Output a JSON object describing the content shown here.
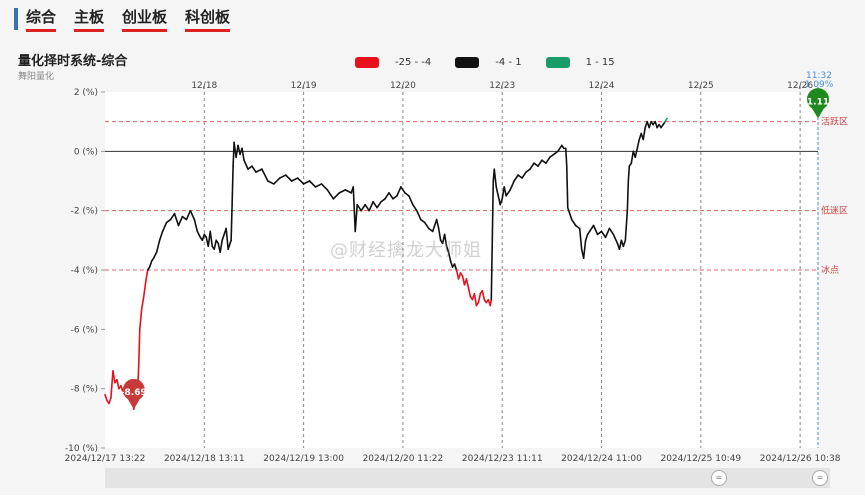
{
  "tabs": [
    {
      "label": "综合"
    },
    {
      "label": "主板"
    },
    {
      "label": "创业板"
    },
    {
      "label": "科创板"
    }
  ],
  "title": "量化择时系统-综合",
  "subtitle": "舞阳量化",
  "watermark": "@财经擒龙大师姐",
  "legend": [
    {
      "label": "-25 - -4",
      "color": "#e8101a"
    },
    {
      "label": "-4 - 1",
      "color": "#111111"
    },
    {
      "label": "1 - 15",
      "color": "#1a9c6a"
    }
  ],
  "colors": {
    "low": "#e8101a",
    "mid": "#111111",
    "high": "#1a9c6a",
    "marker_low": "#c83a3a",
    "marker_high": "#1e8a1e",
    "crosshair": "#4a90d9",
    "ref_line": "#e06666"
  },
  "chart_data": {
    "type": "line",
    "ylim": [
      -10,
      2
    ],
    "y_ticks": [
      "2 (%)",
      "0 (%)",
      "-2 (%)",
      "-4 (%)",
      "-6 (%)",
      "-8 (%)",
      "-10 (%)"
    ],
    "y_tick_values": [
      2,
      0,
      -2,
      -4,
      -6,
      -8,
      -10
    ],
    "day_labels": [
      "12/18",
      "12/19",
      "12/20",
      "12/23",
      "12/24",
      "12/25",
      "12/26"
    ],
    "day_positions": [
      1.0,
      2.0,
      3.0,
      4.0,
      5.0,
      6.0,
      7.0
    ],
    "x_tick_labels": [
      "2024/12/17 13:22",
      "2024/12/18 13:11",
      "2024/12/19 13:00",
      "2024/12/20 11:22",
      "2024/12/23 11:11",
      "2024/12/24 11:00",
      "2024/12/25 10:49",
      "2024/12/26 10:38"
    ],
    "x_tick_positions": [
      0.0,
      1.0,
      2.0,
      3.0,
      4.0,
      5.0,
      6.0,
      7.0
    ],
    "ref_lines": [
      {
        "value": 1,
        "label": "活跃区"
      },
      {
        "value": -2,
        "label": "低迷区"
      },
      {
        "value": -4,
        "label": "冰点"
      }
    ],
    "crosshair": {
      "time": "11:32",
      "value": "1.09%"
    },
    "markers": [
      {
        "label": "-8.69",
        "x": 0.29,
        "y": -8.69,
        "kind": "low"
      },
      {
        "label": "1.11",
        "x": 7.18,
        "y": 1.11,
        "kind": "high"
      }
    ],
    "x_end": 7.18,
    "series": [
      {
        "values": [
          [
            0.0,
            -8.2
          ],
          [
            0.02,
            -8.4
          ],
          [
            0.04,
            -8.5
          ],
          [
            0.06,
            -8.3
          ],
          [
            0.08,
            -7.4
          ],
          [
            0.1,
            -7.8
          ],
          [
            0.12,
            -7.7
          ],
          [
            0.14,
            -8.0
          ],
          [
            0.16,
            -7.9
          ],
          [
            0.18,
            -8.1
          ],
          [
            0.2,
            -8.2
          ],
          [
            0.22,
            -8.1
          ],
          [
            0.24,
            -8.3
          ],
          [
            0.26,
            -8.1
          ],
          [
            0.28,
            -8.5
          ],
          [
            0.29,
            -8.69
          ],
          [
            0.31,
            -8.4
          ],
          [
            0.33,
            -8.0
          ],
          [
            0.34,
            -7.2
          ],
          [
            0.35,
            -6.0
          ],
          [
            0.37,
            -5.3
          ],
          [
            0.39,
            -4.9
          ],
          [
            0.41,
            -4.4
          ],
          [
            0.43,
            -4.0
          ],
          [
            0.45,
            -3.9
          ],
          [
            0.47,
            -3.7
          ],
          [
            0.49,
            -3.6
          ],
          [
            0.52,
            -3.4
          ],
          [
            0.55,
            -3.0
          ],
          [
            0.58,
            -2.7
          ],
          [
            0.62,
            -2.4
          ],
          [
            0.66,
            -2.3
          ],
          [
            0.7,
            -2.1
          ],
          [
            0.74,
            -2.5
          ],
          [
            0.78,
            -2.2
          ],
          [
            0.82,
            -2.3
          ],
          [
            0.86,
            -2.0
          ],
          [
            0.9,
            -2.3
          ],
          [
            0.93,
            -2.7
          ],
          [
            0.96,
            -2.9
          ],
          [
            0.98,
            -3.0
          ],
          [
            1.0,
            -2.8
          ],
          [
            1.02,
            -2.9
          ],
          [
            1.04,
            -3.2
          ],
          [
            1.06,
            -2.7
          ],
          [
            1.08,
            -3.2
          ],
          [
            1.1,
            -3.3
          ],
          [
            1.12,
            -3.0
          ],
          [
            1.14,
            -3.1
          ],
          [
            1.16,
            -3.4
          ],
          [
            1.18,
            -3.0
          ],
          [
            1.2,
            -2.8
          ],
          [
            1.22,
            -2.6
          ],
          [
            1.24,
            -3.3
          ],
          [
            1.26,
            -3.1
          ],
          [
            1.27,
            -3.0
          ],
          [
            1.28,
            -1.8
          ],
          [
            1.29,
            -0.5
          ],
          [
            1.3,
            0.3
          ],
          [
            1.32,
            -0.2
          ],
          [
            1.34,
            0.2
          ],
          [
            1.36,
            -0.1
          ],
          [
            1.38,
            0.1
          ],
          [
            1.4,
            -0.3
          ],
          [
            1.44,
            -0.6
          ],
          [
            1.48,
            -0.5
          ],
          [
            1.52,
            -0.7
          ],
          [
            1.58,
            -0.6
          ],
          [
            1.64,
            -1.0
          ],
          [
            1.7,
            -1.1
          ],
          [
            1.76,
            -0.9
          ],
          [
            1.82,
            -0.8
          ],
          [
            1.88,
            -1.0
          ],
          [
            1.94,
            -0.9
          ],
          [
            2.0,
            -1.1
          ],
          [
            2.06,
            -1.0
          ],
          [
            2.12,
            -1.2
          ],
          [
            2.18,
            -1.1
          ],
          [
            2.24,
            -1.3
          ],
          [
            2.3,
            -1.6
          ],
          [
            2.36,
            -1.4
          ],
          [
            2.42,
            -1.3
          ],
          [
            2.48,
            -1.4
          ],
          [
            2.5,
            -1.2
          ],
          [
            2.52,
            -2.7
          ],
          [
            2.54,
            -1.8
          ],
          [
            2.58,
            -2.0
          ],
          [
            2.62,
            -1.8
          ],
          [
            2.66,
            -2.0
          ],
          [
            2.7,
            -1.7
          ],
          [
            2.74,
            -1.9
          ],
          [
            2.78,
            -1.7
          ],
          [
            2.82,
            -1.6
          ],
          [
            2.86,
            -1.4
          ],
          [
            2.9,
            -1.6
          ],
          [
            2.94,
            -1.5
          ],
          [
            2.98,
            -1.2
          ],
          [
            3.02,
            -1.4
          ],
          [
            3.06,
            -1.5
          ],
          [
            3.1,
            -1.8
          ],
          [
            3.14,
            -2.0
          ],
          [
            3.18,
            -2.3
          ],
          [
            3.22,
            -2.4
          ],
          [
            3.26,
            -2.6
          ],
          [
            3.3,
            -2.7
          ],
          [
            3.32,
            -2.5
          ],
          [
            3.34,
            -2.3
          ],
          [
            3.36,
            -2.6
          ],
          [
            3.38,
            -3.0
          ],
          [
            3.4,
            -3.1
          ],
          [
            3.42,
            -2.8
          ],
          [
            3.44,
            -3.2
          ],
          [
            3.46,
            -3.4
          ],
          [
            3.48,
            -3.7
          ],
          [
            3.5,
            -3.9
          ],
          [
            3.52,
            -3.8
          ],
          [
            3.54,
            -4.0
          ],
          [
            3.56,
            -4.3
          ],
          [
            3.58,
            -4.1
          ],
          [
            3.6,
            -4.2
          ],
          [
            3.62,
            -4.5
          ],
          [
            3.64,
            -4.3
          ],
          [
            3.66,
            -4.6
          ],
          [
            3.68,
            -4.9
          ],
          [
            3.7,
            -5.0
          ],
          [
            3.72,
            -4.8
          ],
          [
            3.74,
            -5.2
          ],
          [
            3.76,
            -5.1
          ],
          [
            3.78,
            -4.8
          ],
          [
            3.8,
            -4.7
          ],
          [
            3.82,
            -5.0
          ],
          [
            3.84,
            -5.1
          ],
          [
            3.86,
            -5.0
          ],
          [
            3.88,
            -5.2
          ],
          [
            3.89,
            -5.0
          ],
          [
            3.9,
            -3.0
          ],
          [
            3.91,
            -1.0
          ],
          [
            3.92,
            -0.6
          ],
          [
            3.94,
            -1.2
          ],
          [
            3.96,
            -1.5
          ],
          [
            3.98,
            -1.8
          ],
          [
            4.0,
            -1.6
          ],
          [
            4.02,
            -1.2
          ],
          [
            4.04,
            -1.5
          ],
          [
            4.08,
            -1.3
          ],
          [
            4.12,
            -1.0
          ],
          [
            4.16,
            -0.8
          ],
          [
            4.2,
            -0.9
          ],
          [
            4.24,
            -0.7
          ],
          [
            4.28,
            -0.6
          ],
          [
            4.32,
            -0.4
          ],
          [
            4.36,
            -0.5
          ],
          [
            4.4,
            -0.3
          ],
          [
            4.44,
            -0.4
          ],
          [
            4.48,
            -0.2
          ],
          [
            4.52,
            -0.1
          ],
          [
            4.56,
            0.0
          ],
          [
            4.6,
            0.2
          ],
          [
            4.62,
            0.1
          ],
          [
            4.64,
            0.1
          ],
          [
            4.65,
            -0.5
          ],
          [
            4.66,
            -1.9
          ],
          [
            4.68,
            -2.1
          ],
          [
            4.7,
            -2.3
          ],
          [
            4.74,
            -2.5
          ],
          [
            4.78,
            -2.6
          ],
          [
            4.8,
            -3.3
          ],
          [
            4.82,
            -3.6
          ],
          [
            4.84,
            -3.0
          ],
          [
            4.86,
            -2.8
          ],
          [
            4.88,
            -2.7
          ],
          [
            4.92,
            -2.5
          ],
          [
            4.96,
            -2.8
          ],
          [
            5.0,
            -2.7
          ],
          [
            5.04,
            -2.9
          ],
          [
            5.08,
            -2.6
          ],
          [
            5.12,
            -2.8
          ],
          [
            5.16,
            -3.1
          ],
          [
            5.18,
            -3.3
          ],
          [
            5.2,
            -3.0
          ],
          [
            5.22,
            -3.2
          ],
          [
            5.24,
            -3.0
          ],
          [
            5.26,
            -2.0
          ],
          [
            5.27,
            -1.0
          ],
          [
            5.28,
            -0.5
          ],
          [
            5.3,
            -0.4
          ],
          [
            5.32,
            0.0
          ],
          [
            5.34,
            -0.2
          ],
          [
            5.36,
            0.1
          ],
          [
            5.38,
            0.4
          ],
          [
            5.4,
            0.6
          ],
          [
            5.42,
            0.4
          ],
          [
            5.44,
            0.8
          ],
          [
            5.46,
            1.0
          ],
          [
            5.48,
            0.8
          ],
          [
            5.5,
            1.0
          ],
          [
            5.52,
            0.9
          ],
          [
            5.54,
            1.0
          ],
          [
            5.56,
            0.8
          ],
          [
            5.58,
            0.9
          ],
          [
            5.6,
            0.8
          ],
          [
            5.62,
            0.9
          ],
          [
            5.64,
            1.0
          ],
          [
            5.66,
            1.11
          ]
        ]
      }
    ]
  },
  "scroll": {
    "left_handle": "=",
    "right_handle": "="
  }
}
